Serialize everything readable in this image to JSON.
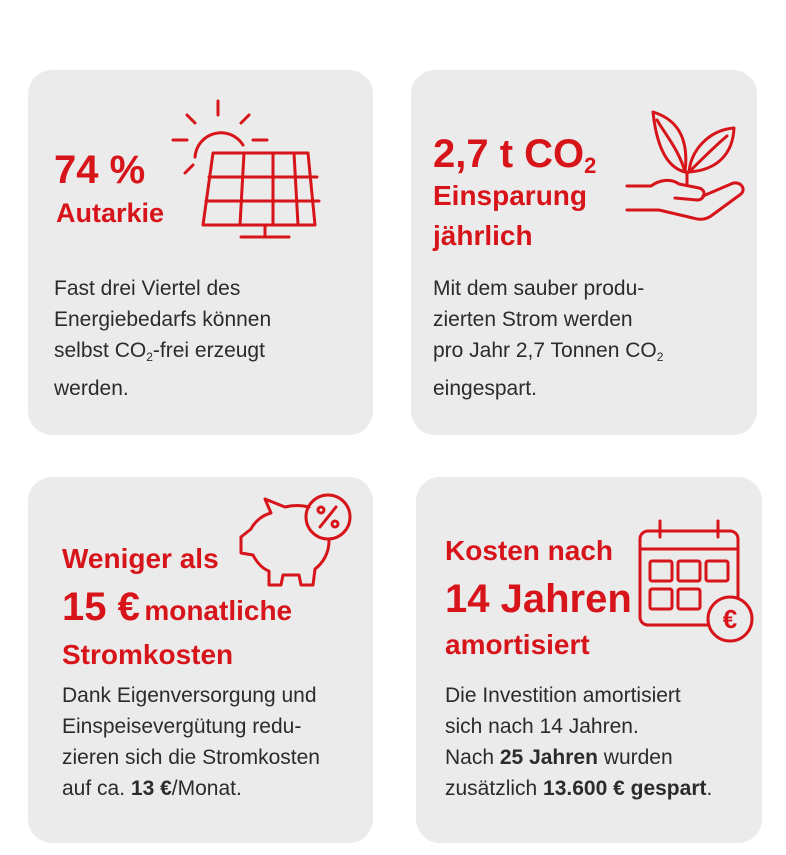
{
  "cards": [
    {
      "big": "74 %",
      "sub": "Autarkie",
      "body": [
        "Fast drei Viertel des",
        "Energiebedarfs können",
        "selbst CO",
        "2",
        "-frei erzeugt",
        "werden."
      ]
    },
    {
      "big": "2,7 t CO",
      "big_sub": "2",
      "line2": "Einsparung",
      "line3": "jährlich",
      "body": [
        "Mit dem sauber produ-",
        "zierten Strom werden",
        "pro Jahr 2,7 Tonnen CO",
        "2",
        "eingespart."
      ]
    },
    {
      "line1": "Weniger als",
      "big": "15 €",
      "big_rest": "monatliche",
      "line3": "Stromkosten",
      "body": [
        "Dank Eigenversorgung und",
        "Einspeisevergütung redu-",
        "zieren sich die Stromkosten",
        "auf ca.",
        "13 €",
        "/Monat."
      ]
    },
    {
      "line1": "Kosten nach",
      "big": "14 Jahren",
      "line3": "amortisiert",
      "body": [
        "Die Investition amortisiert",
        "sich nach 14 Jahren.",
        "Nach",
        "25 Jahren",
        "wurden",
        "zusätzlich",
        "13.600 € gespart",
        "."
      ]
    }
  ],
  "icons": [
    "solar-panel-icon",
    "leaf-hand-icon",
    "piggy-bank-percent-icon",
    "calendar-euro-icon"
  ],
  "colors": {
    "accent": "#d7141a",
    "card": "#ebebeb",
    "text": "#2b2b2b"
  },
  "percent_symbol": "%",
  "euro_symbol": "€"
}
